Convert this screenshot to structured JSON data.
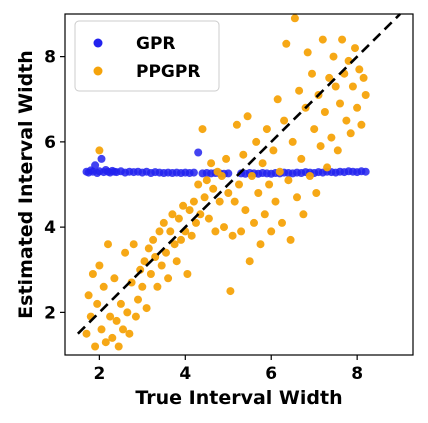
{
  "chart_data": {
    "type": "scatter",
    "title": "",
    "xlabel": "True Interval Width",
    "ylabel": "Estimated Interval Width",
    "xlim": [
      1.2,
      9.3
    ],
    "ylim": [
      1.0,
      9.0
    ],
    "xticks": [
      2,
      4,
      6,
      8
    ],
    "yticks": [
      2,
      4,
      6,
      8
    ],
    "grid": false,
    "legend_position": "top-left",
    "reference_line": {
      "style": "dashed",
      "color": "#000000",
      "x": [
        1.5,
        9.0
      ],
      "y": [
        1.5,
        9.0
      ]
    },
    "series": [
      {
        "name": "GPR",
        "color": "#2222ee",
        "points": [
          [
            1.7,
            5.3
          ],
          [
            1.75,
            5.28
          ],
          [
            1.8,
            5.33
          ],
          [
            1.85,
            5.3
          ],
          [
            1.9,
            5.45
          ],
          [
            1.95,
            5.27
          ],
          [
            2.0,
            5.31
          ],
          [
            2.05,
            5.6
          ],
          [
            2.1,
            5.29
          ],
          [
            2.15,
            5.34
          ],
          [
            2.2,
            5.3
          ],
          [
            2.25,
            5.28
          ],
          [
            2.3,
            5.32
          ],
          [
            2.35,
            5.3
          ],
          [
            2.4,
            5.29
          ],
          [
            2.5,
            5.31
          ],
          [
            2.6,
            5.28
          ],
          [
            2.7,
            5.3
          ],
          [
            2.8,
            5.29
          ],
          [
            2.9,
            5.3
          ],
          [
            3.0,
            5.28
          ],
          [
            3.1,
            5.3
          ],
          [
            3.2,
            5.27
          ],
          [
            3.3,
            5.29
          ],
          [
            3.4,
            5.28
          ],
          [
            3.5,
            5.27
          ],
          [
            3.6,
            5.28
          ],
          [
            3.7,
            5.27
          ],
          [
            3.8,
            5.28
          ],
          [
            3.9,
            5.27
          ],
          [
            4.0,
            5.28
          ],
          [
            4.1,
            5.27
          ],
          [
            4.2,
            5.28
          ],
          [
            4.3,
            5.75
          ],
          [
            4.4,
            5.26
          ],
          [
            4.5,
            5.27
          ],
          [
            4.6,
            5.26
          ],
          [
            4.7,
            5.27
          ],
          [
            4.8,
            5.26
          ],
          [
            4.9,
            5.25
          ],
          [
            5.0,
            5.26
          ],
          [
            5.3,
            5.26
          ],
          [
            5.4,
            5.25
          ],
          [
            5.5,
            5.27
          ],
          [
            5.6,
            5.26
          ],
          [
            5.7,
            5.25
          ],
          [
            5.8,
            5.27
          ],
          [
            5.9,
            5.26
          ],
          [
            6.0,
            5.25
          ],
          [
            6.1,
            5.27
          ],
          [
            6.2,
            5.26
          ],
          [
            6.3,
            5.28
          ],
          [
            6.4,
            5.27
          ],
          [
            6.5,
            5.26
          ],
          [
            6.6,
            5.28
          ],
          [
            6.7,
            5.27
          ],
          [
            6.8,
            5.29
          ],
          [
            6.9,
            5.28
          ],
          [
            7.0,
            5.27
          ],
          [
            7.1,
            5.29
          ],
          [
            7.2,
            5.28
          ],
          [
            7.3,
            5.3
          ],
          [
            7.4,
            5.29
          ],
          [
            7.5,
            5.28
          ],
          [
            7.6,
            5.3
          ],
          [
            7.7,
            5.29
          ],
          [
            7.8,
            5.31
          ],
          [
            7.9,
            5.3
          ],
          [
            8.0,
            5.29
          ],
          [
            8.1,
            5.31
          ],
          [
            8.2,
            5.3
          ]
        ]
      },
      {
        "name": "PPGPR",
        "color": "#f5a30a",
        "points": [
          [
            1.7,
            1.5
          ],
          [
            1.75,
            2.4
          ],
          [
            1.8,
            1.9
          ],
          [
            1.85,
            2.9
          ],
          [
            1.9,
            1.2
          ],
          [
            1.95,
            2.2
          ],
          [
            2.0,
            3.1
          ],
          [
            2.0,
            5.8
          ],
          [
            2.05,
            1.6
          ],
          [
            2.1,
            2.6
          ],
          [
            2.15,
            1.3
          ],
          [
            2.2,
            3.6
          ],
          [
            2.25,
            1.9
          ],
          [
            2.3,
            1.4
          ],
          [
            2.35,
            2.8
          ],
          [
            2.4,
            1.8
          ],
          [
            2.45,
            1.2
          ],
          [
            2.5,
            2.2
          ],
          [
            2.55,
            1.6
          ],
          [
            2.6,
            3.4
          ],
          [
            2.65,
            2.0
          ],
          [
            2.7,
            1.5
          ],
          [
            2.75,
            2.7
          ],
          [
            2.8,
            3.6
          ],
          [
            2.85,
            1.9
          ],
          [
            2.9,
            2.3
          ],
          [
            2.95,
            3.0
          ],
          [
            3.0,
            2.6
          ],
          [
            3.05,
            3.2
          ],
          [
            3.1,
            2.1
          ],
          [
            3.15,
            3.5
          ],
          [
            3.2,
            2.9
          ],
          [
            3.25,
            3.7
          ],
          [
            3.3,
            3.3
          ],
          [
            3.35,
            2.6
          ],
          [
            3.4,
            3.9
          ],
          [
            3.45,
            3.1
          ],
          [
            3.5,
            4.1
          ],
          [
            3.55,
            3.4
          ],
          [
            3.6,
            2.8
          ],
          [
            3.65,
            3.9
          ],
          [
            3.7,
            4.3
          ],
          [
            3.75,
            3.6
          ],
          [
            3.8,
            3.2
          ],
          [
            3.85,
            4.2
          ],
          [
            3.9,
            3.7
          ],
          [
            3.95,
            4.5
          ],
          [
            4.0,
            3.9
          ],
          [
            4.05,
            2.9
          ],
          [
            4.1,
            4.4
          ],
          [
            4.15,
            3.8
          ],
          [
            4.2,
            4.6
          ],
          [
            4.25,
            4.1
          ],
          [
            4.3,
            5.0
          ],
          [
            4.35,
            4.3
          ],
          [
            4.4,
            6.3
          ],
          [
            4.45,
            4.7
          ],
          [
            4.5,
            5.1
          ],
          [
            4.55,
            4.2
          ],
          [
            4.6,
            5.5
          ],
          [
            4.65,
            4.9
          ],
          [
            4.7,
            3.9
          ],
          [
            4.75,
            5.3
          ],
          [
            4.8,
            4.6
          ],
          [
            4.85,
            5.2
          ],
          [
            4.9,
            4.0
          ],
          [
            4.95,
            5.6
          ],
          [
            5.0,
            4.8
          ],
          [
            5.05,
            2.5
          ],
          [
            5.1,
            3.8
          ],
          [
            5.15,
            4.6
          ],
          [
            5.2,
            6.4
          ],
          [
            5.25,
            5.0
          ],
          [
            5.3,
            3.9
          ],
          [
            5.35,
            5.7
          ],
          [
            5.4,
            4.4
          ],
          [
            5.45,
            6.6
          ],
          [
            5.5,
            3.2
          ],
          [
            5.55,
            5.2
          ],
          [
            5.6,
            4.1
          ],
          [
            5.65,
            6.0
          ],
          [
            5.7,
            4.8
          ],
          [
            5.75,
            3.6
          ],
          [
            5.8,
            5.5
          ],
          [
            5.85,
            4.3
          ],
          [
            5.9,
            6.3
          ],
          [
            5.95,
            5.0
          ],
          [
            6.0,
            3.9
          ],
          [
            6.05,
            5.8
          ],
          [
            6.1,
            4.6
          ],
          [
            6.15,
            7.0
          ],
          [
            6.2,
            5.3
          ],
          [
            6.25,
            4.1
          ],
          [
            6.3,
            6.5
          ],
          [
            6.35,
            8.3
          ],
          [
            6.4,
            5.1
          ],
          [
            6.45,
            3.7
          ],
          [
            6.5,
            6.0
          ],
          [
            6.55,
            8.9
          ],
          [
            6.6,
            4.7
          ],
          [
            6.65,
            7.2
          ],
          [
            6.7,
            5.6
          ],
          [
            6.75,
            4.3
          ],
          [
            6.8,
            6.8
          ],
          [
            6.85,
            8.1
          ],
          [
            6.9,
            5.2
          ],
          [
            6.95,
            7.6
          ],
          [
            7.0,
            6.3
          ],
          [
            7.05,
            4.8
          ],
          [
            7.1,
            7.1
          ],
          [
            7.15,
            5.9
          ],
          [
            7.2,
            8.4
          ],
          [
            7.25,
            6.7
          ],
          [
            7.3,
            5.4
          ],
          [
            7.35,
            7.5
          ],
          [
            7.4,
            6.1
          ],
          [
            7.45,
            8.0
          ],
          [
            7.5,
            7.3
          ],
          [
            7.55,
            5.8
          ],
          [
            7.6,
            6.9
          ],
          [
            7.65,
            8.4
          ],
          [
            7.7,
            7.6
          ],
          [
            7.75,
            6.5
          ],
          [
            7.8,
            7.9
          ],
          [
            7.85,
            6.2
          ],
          [
            7.9,
            7.3
          ],
          [
            7.95,
            8.2
          ],
          [
            8.0,
            6.8
          ],
          [
            8.05,
            7.7
          ],
          [
            8.1,
            6.4
          ],
          [
            8.15,
            7.5
          ],
          [
            8.2,
            7.1
          ]
        ]
      }
    ]
  }
}
